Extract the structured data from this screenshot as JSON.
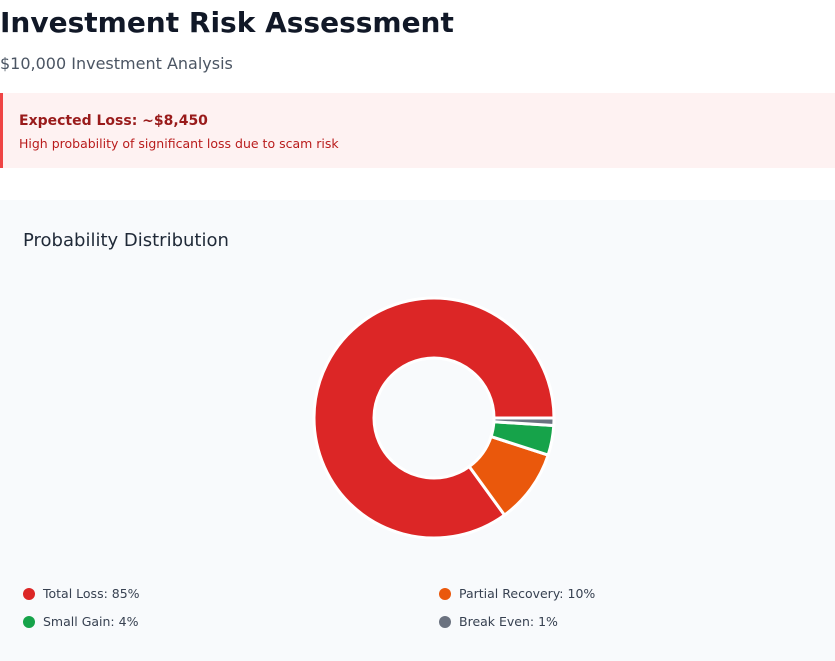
{
  "header": {
    "title": "Investment Risk Assessment",
    "subtitle": "$10,000 Investment Analysis"
  },
  "alert": {
    "title": "Expected Loss: ~$8,450",
    "message": "High probability of significant loss due to scam risk"
  },
  "chart_data": {
    "type": "donut",
    "title": "Probability Distribution",
    "labels": [
      "Total Loss: 85%",
      "Partial Recovery: 10%",
      "Small Gain: 4%",
      "Break Even: 1%"
    ],
    "values": [
      85,
      10,
      4,
      1
    ],
    "colors": [
      "#dc2626",
      "#ea580c",
      "#16a34a",
      "#6b7280"
    ]
  }
}
